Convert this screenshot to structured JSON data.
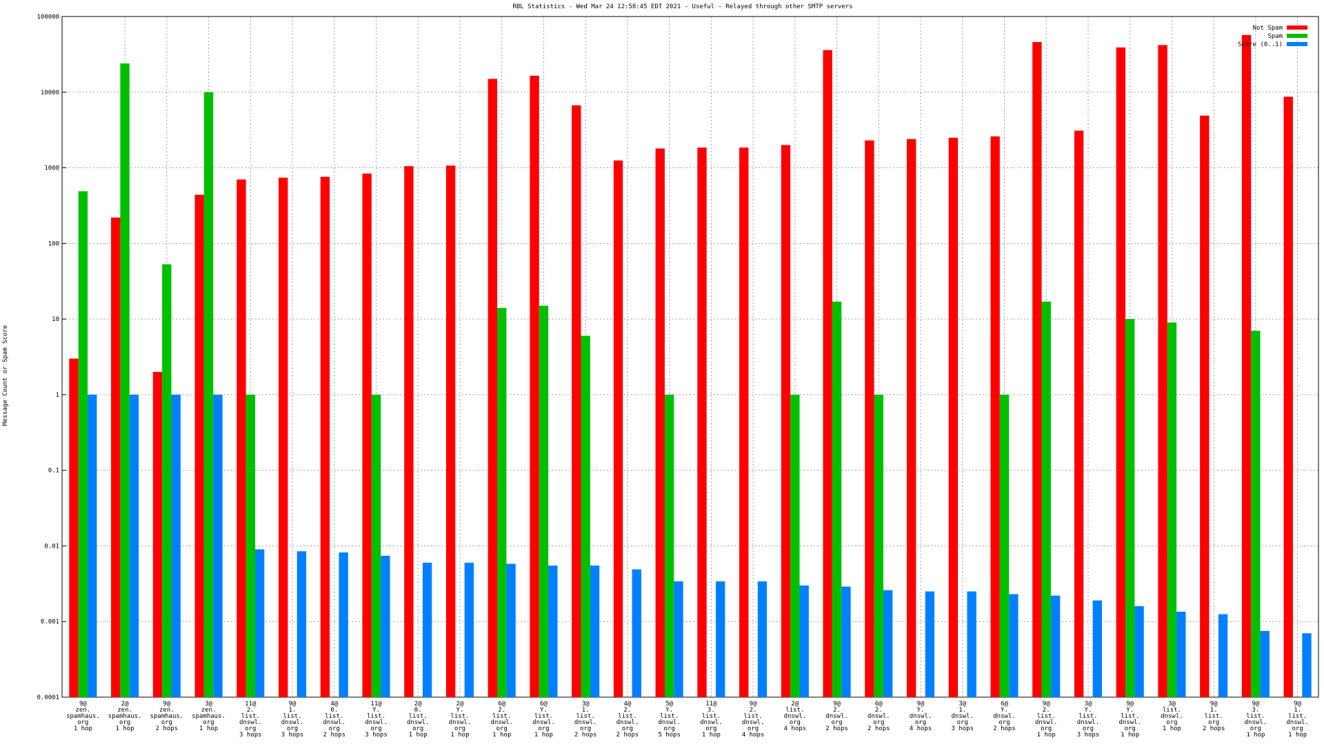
{
  "chart_data": {
    "type": "bar",
    "log_scale": true,
    "grid": true,
    "legend": "top-right",
    "title": "RBL Statistics - Wed Mar 24 12:58:45 EDT 2021 - Useful - Relayed through other SMTP servers",
    "y_label": "Message Count or Spam Score",
    "ylim": [
      0.0001,
      100000
    ],
    "yticks": [
      0.0001,
      0.001,
      0.01,
      0.1,
      1,
      10,
      100,
      1000,
      10000,
      100000
    ],
    "categories": [
      "9@\nzen.\nspamhaus.\norg\n1 hop",
      "2@\nzen.\nspamhaus.\norg\n1 hop",
      "9@\nzen.\nspamhaus.\norg\n2 hops",
      "3@\nzen.\nspamhaus.\norg\n1 hop",
      "11@\n2.\nlist.\ndnswl.\norg\n3 hops",
      "9@\n1.\nlist.\ndnswl.\norg\n3 hops",
      "4@\n0.\nlist.\ndnswl.\norg\n2 hops",
      "11@\nY.\nlist.\ndnswl.\norg\n3 hops",
      "2@\n0.\nlist.\ndnswl.\norg\n1 hop",
      "2@\nY.\nlist.\ndnswl.\norg\n1 hop",
      "6@\n2.\nlist.\ndnswl.\norg\n1 hop",
      "6@\nY.\nlist.\ndnswl.\norg\n1 hop",
      "3@\n1.\nlist.\ndnswl.\norg\n2 hops",
      "4@\n2.\nlist.\ndnswl.\norg\n2 hops",
      "5@\nY.\nlist.\ndnswl.\norg\n5 hops",
      "11@\n3.\nlist.\ndnswl.\norg\n1 hop",
      "9@\n2.\nlist.\ndnswl.\norg\n4 hops",
      "2@\nlist.\ndnswl.\norg\n4 hops",
      "9@\n2.\ndnswl.\norg\n2 hops",
      "6@\n2.\ndnswl.\norg\n2 hops",
      "9@\nY.\ndnswl.\norg\n4 hops",
      "3@\n1.\ndnswl.\norg\n3 hops",
      "6@\nY.\ndnswl.\norg\n2 hops",
      "9@\n2.\nlist.\ndnswl.\norg\n1 hop",
      "3@\nY.\nlist.\ndnswl.\norg\n3 hops",
      "9@\nY.\nlist.\ndnswl.\norg\n1 hop",
      "3@\nlist.\ndnswl.\norg\n1 hop",
      "9@\n1.\nlist.\norg\n2 hops",
      "9@\n3.\nlist.\ndnswl.\norg\n1 hop",
      "9@\n1.\nlist.\ndnswl.\norg\n1 hop"
    ],
    "series": [
      {
        "name": "Not Spam",
        "color": "#ff0000",
        "values": [
          3,
          220,
          2,
          440,
          700,
          740,
          760,
          840,
          1050,
          1070,
          15000,
          16500,
          6700,
          1250,
          1800,
          1850,
          1850,
          2000,
          36000,
          2300,
          2400,
          2500,
          2600,
          46000,
          3100,
          39000,
          42000,
          4900,
          57000,
          8700
        ]
      },
      {
        "name": "Spam",
        "color": "#00c000",
        "values": [
          490,
          24000,
          53,
          10000,
          1,
          null,
          null,
          1,
          null,
          null,
          14,
          15,
          6,
          null,
          1,
          null,
          null,
          1,
          17,
          1,
          null,
          null,
          1,
          17,
          null,
          10,
          9,
          null,
          7,
          null
        ]
      },
      {
        "name": "Score (0..1)",
        "color": "#0080ff",
        "values": [
          1,
          1,
          1,
          1,
          0.009,
          0.0085,
          0.0082,
          0.0074,
          0.006,
          0.006,
          0.0058,
          0.0055,
          0.0055,
          0.0049,
          0.0034,
          0.0034,
          0.0034,
          0.003,
          0.0029,
          0.0026,
          0.0025,
          0.0025,
          0.0023,
          0.0022,
          0.0019,
          0.0016,
          0.00135,
          0.00125,
          0.00075,
          0.0007
        ]
      }
    ]
  }
}
